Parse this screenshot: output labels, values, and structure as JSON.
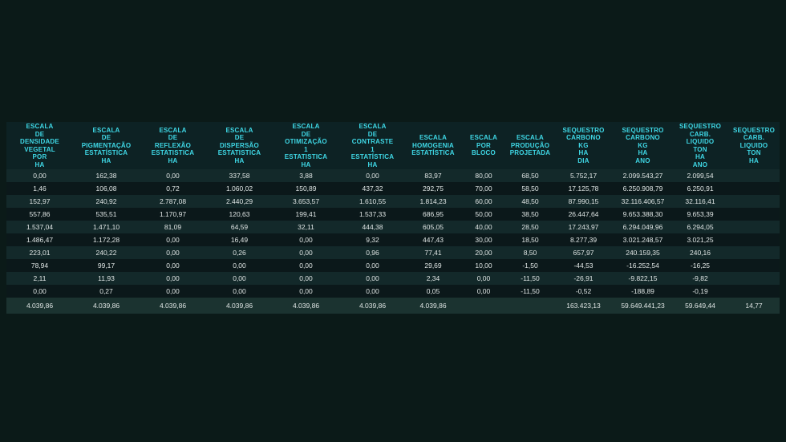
{
  "colors": {
    "page_bg": "#0b1a18",
    "header_bg": "#0d2224",
    "header_text": "#3fd8e6",
    "row_odd_bg": "#13292a",
    "row_even_bg": "#0b181a",
    "totals_bg": "#1b3330",
    "cell_text": "#dfe5e4"
  },
  "table": {
    "columns": [
      "ESCALA\nDE\nDENSIDADE\nVEGETAL\nPOR\nHA",
      "ESCALA\nDE\nPIGMENTAÇÃO\nESTATÍSTICA\nHA",
      "ESCALA\nDE\nREFLEXÃO\nESTATISTICA\nHA",
      "ESCALA\nDE\nDISPERSÃO\nESTATISTICA\nHA",
      "ESCALA\nDE\nOTIMIZAÇÃO\n1\nESTATISTICA\nHA",
      "ESCALA\nDE\nCONTRASTE\n1\nESTATÍSTICA\nHA",
      "ESCALA\nHOMOGENIA\nESTATÍSTICA",
      "ESCALA\nPOR\nBLOCO",
      "ESCALA\nPRODUÇÃO\nPROJETADA",
      "SEQUESTRO\nCARBONO\nKG\nHA\nDIA",
      "SEQUESTRO\nCARBONO\nKG\nHA\nANO",
      "SEQUESTRO\nCARB.\nLIQUIDO\nTON\nHA\nANO",
      "SEQUESTRO\nCARB.\nLIQUIDO\nTON\nHA"
    ],
    "rows": [
      [
        "0,00",
        "162,38",
        "0,00",
        "337,58",
        "3,88",
        "0,00",
        "83,97",
        "80,00",
        "68,50",
        "5.752,17",
        "2.099.543,27",
        "2.099,54",
        ""
      ],
      [
        "1,46",
        "106,08",
        "0,72",
        "1.060,02",
        "150,89",
        "437,32",
        "292,75",
        "70,00",
        "58,50",
        "17.125,78",
        "6.250.908,79",
        "6.250,91",
        ""
      ],
      [
        "152,97",
        "240,92",
        "2.787,08",
        "2.440,29",
        "3.653,57",
        "1.610,55",
        "1.814,23",
        "60,00",
        "48,50",
        "87.990,15",
        "32.116.406,57",
        "32.116,41",
        ""
      ],
      [
        "557,86",
        "535,51",
        "1.170,97",
        "120,63",
        "199,41",
        "1.537,33",
        "686,95",
        "50,00",
        "38,50",
        "26.447,64",
        "9.653.388,30",
        "9.653,39",
        ""
      ],
      [
        "1.537,04",
        "1.471,10",
        "81,09",
        "64,59",
        "32,11",
        "444,38",
        "605,05",
        "40,00",
        "28,50",
        "17.243,97",
        "6.294.049,96",
        "6.294,05",
        ""
      ],
      [
        "1.486,47",
        "1.172,28",
        "0,00",
        "16,49",
        "0,00",
        "9,32",
        "447,43",
        "30,00",
        "18,50",
        "8.277,39",
        "3.021.248,57",
        "3.021,25",
        ""
      ],
      [
        "223,01",
        "240,22",
        "0,00",
        "0,26",
        "0,00",
        "0,96",
        "77,41",
        "20,00",
        "8,50",
        "657,97",
        "240.159,35",
        "240,16",
        ""
      ],
      [
        "78,94",
        "99,17",
        "0,00",
        "0,00",
        "0,00",
        "0,00",
        "29,69",
        "10,00",
        "-1,50",
        "-44,53",
        "-16.252,54",
        "-16,25",
        ""
      ],
      [
        "2,11",
        "11,93",
        "0,00",
        "0,00",
        "0,00",
        "0,00",
        "2,34",
        "0,00",
        "-11,50",
        "-26,91",
        "-9.822,15",
        "-9,82",
        ""
      ],
      [
        "0,00",
        "0,27",
        "0,00",
        "0,00",
        "0,00",
        "0,00",
        "0,05",
        "0,00",
        "-11,50",
        "-0,52",
        "-188,89",
        "-0,19",
        ""
      ]
    ],
    "totals": [
      "4.039,86",
      "4.039,86",
      "4.039,86",
      "4.039,86",
      "4.039,86",
      "4.039,86",
      "4.039,86",
      "",
      "",
      "163.423,13",
      "59.649.441,23",
      "59.649,44",
      "14,77"
    ]
  }
}
